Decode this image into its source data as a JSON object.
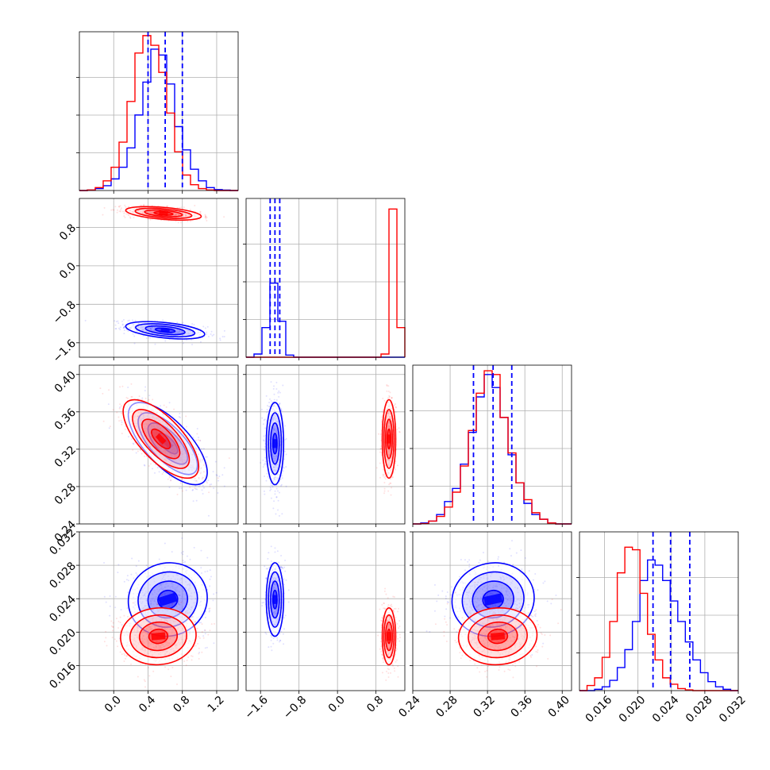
{
  "chart_data": {
    "type": "corner",
    "grid": true,
    "colors": {
      "series_a": "#0000ff",
      "series_b": "#ff0000"
    },
    "parameters": [
      {
        "range": [
          -0.4,
          1.45
        ],
        "ticks": [
          0.0,
          0.4,
          0.8,
          1.2
        ],
        "tick_labels": [
          "0.0",
          "0.4",
          "0.8",
          "1.2"
        ],
        "quantile_lines": [
          0.4,
          0.6,
          0.8
        ]
      },
      {
        "range": [
          -1.9,
          1.4
        ],
        "ticks": [
          -1.6,
          -0.8,
          0.0,
          0.8
        ],
        "tick_labels": [
          "−1.6",
          "−0.8",
          "0.0",
          "0.8"
        ],
        "quantile_lines": [
          -1.4,
          -1.3,
          -1.2
        ]
      },
      {
        "range": [
          0.24,
          0.41
        ],
        "ticks": [
          0.24,
          0.28,
          0.32,
          0.36,
          0.4
        ],
        "tick_labels": [
          "0.24",
          "0.28",
          "0.32",
          "0.36",
          "0.40"
        ],
        "quantile_lines": [
          0.305,
          0.326,
          0.346
        ]
      },
      {
        "range": [
          0.013,
          0.032
        ],
        "ticks": [
          0.016,
          0.02,
          0.024,
          0.028,
          0.032
        ],
        "tick_labels": [
          "0.016",
          "0.020",
          "0.024",
          "0.028",
          "0.032"
        ],
        "quantile_lines": [
          0.0218,
          0.0239,
          0.0262
        ]
      }
    ],
    "histograms": [
      {
        "param": 0,
        "edges_range": [
          -0.4,
          1.45
        ],
        "bins": 20,
        "series": [
          {
            "color": "#0000ff",
            "values": [
              0.0,
              0.2,
              1.0,
              2.5,
              6.0,
              12.0,
              22.0,
              39.0,
              56.0,
              73.0,
              70.0,
              55.0,
              33.0,
              21.0,
              11.0,
              5.0,
              1.5,
              0.5,
              0.2,
              0.0
            ]
          },
          {
            "color": "#ff0000",
            "values": [
              0.0,
              0.3,
              1.5,
              5.0,
              12.0,
              25.0,
              46.0,
              71.0,
              80.0,
              75.0,
              61.0,
              40.0,
              20.0,
              8.0,
              3.0,
              1.0,
              0.3,
              0.0,
              0.0,
              0.0
            ]
          }
        ],
        "ymax": 82
      },
      {
        "param": 1,
        "edges_range": [
          -1.9,
          1.4
        ],
        "bins": 20,
        "series": [
          {
            "color": "#0000ff",
            "values": [
              0.0,
              1.5,
              14.0,
              35.0,
              17.0,
              1.0,
              0.0,
              0.0,
              0.0,
              0.0,
              0.0,
              0.0,
              0.0,
              0.0,
              0.0,
              0.0,
              0.0,
              0.0,
              0.0,
              0.0
            ]
          },
          {
            "color": "#ff0000",
            "values": [
              0.0,
              0.0,
              0.0,
              0.0,
              0.0,
              0.0,
              0.0,
              0.0,
              0.0,
              0.0,
              0.0,
              0.0,
              0.0,
              0.0,
              0.0,
              0.0,
              0.0,
              1.5,
              70.0,
              14.0
            ]
          }
        ],
        "ymax": 75
      },
      {
        "param": 2,
        "edges_range": [
          0.24,
          0.41
        ],
        "bins": 20,
        "series": [
          {
            "color": "#0000ff",
            "values": [
              0.0,
              0.5,
              1.5,
              5.0,
              12.0,
              19.0,
              32.0,
              49.0,
              68.0,
              80.0,
              73.0,
              57.0,
              37.0,
              22.0,
              11.0,
              5.0,
              2.5,
              0.5,
              0.0,
              0.0
            ]
          },
          {
            "color": "#ff0000",
            "values": [
              0.0,
              0.2,
              1.5,
              4.0,
              9.0,
              17.0,
              31.0,
              50.0,
              70.0,
              82.0,
              80.0,
              57.0,
              38.0,
              22.0,
              13.0,
              6.0,
              2.5,
              0.5,
              0.0,
              0.0
            ]
          }
        ],
        "ymax": 85
      },
      {
        "param": 3,
        "edges_range": [
          0.013,
          0.032
        ],
        "bins": 21,
        "series": [
          {
            "color": "#0000ff",
            "values": [
              0.0,
              0.0,
              0.5,
              1.5,
              4.0,
              9.0,
              16.0,
              27.0,
              43.0,
              51.0,
              49.0,
              43.0,
              35.0,
              27.0,
              19.0,
              12.0,
              7.0,
              3.5,
              1.5,
              0.5,
              0.0
            ]
          },
          {
            "color": "#ff0000",
            "values": [
              0.0,
              2.0,
              5.0,
              13.0,
              27.0,
              46.0,
              56.0,
              55.0,
              38.0,
              22.0,
              12.0,
              5.0,
              2.5,
              0.8,
              0.3,
              0.0,
              0.0,
              0.0,
              0.0,
              0.0,
              0.0
            ]
          }
        ],
        "ymax": 62
      }
    ],
    "scatter_panels": [
      {
        "x_param": 0,
        "y_param": 1,
        "series": [
          {
            "color": "#0000ff",
            "mean": [
              0.6,
              -1.34
            ],
            "sd": [
              0.23,
              0.09
            ],
            "corr": -0.45
          },
          {
            "color": "#ff0000",
            "mean": [
              0.58,
              1.09
            ],
            "sd": [
              0.22,
              0.07
            ],
            "corr": -0.45
          }
        ]
      },
      {
        "x_param": 0,
        "y_param": 2,
        "series": [
          {
            "color": "#0000ff",
            "mean": [
              0.63,
              0.326
            ],
            "sd": [
              0.23,
              0.022
            ],
            "corr": -0.7
          },
          {
            "color": "#ff0000",
            "mean": [
              0.55,
              0.331
            ],
            "sd": [
              0.22,
              0.021
            ],
            "corr": -0.7
          }
        ]
      },
      {
        "x_param": 1,
        "y_param": 2,
        "series": [
          {
            "color": "#0000ff",
            "mean": [
              -1.3,
              0.326
            ],
            "sd": [
              0.09,
              0.022
            ],
            "corr": 0.0
          },
          {
            "color": "#ff0000",
            "mean": [
              1.07,
              0.331
            ],
            "sd": [
              0.07,
              0.021
            ],
            "corr": 0.0
          }
        ]
      },
      {
        "x_param": 0,
        "y_param": 3,
        "series": [
          {
            "color": "#0000ff",
            "mean": [
              0.63,
              0.0239
            ],
            "sd": [
              0.23,
              0.0022
            ],
            "corr": 0.05
          },
          {
            "color": "#ff0000",
            "mean": [
              0.52,
              0.0195
            ],
            "sd": [
              0.22,
              0.0017
            ],
            "corr": 0.05
          }
        ]
      },
      {
        "x_param": 1,
        "y_param": 3,
        "series": [
          {
            "color": "#0000ff",
            "mean": [
              -1.3,
              0.0239
            ],
            "sd": [
              0.09,
              0.0022
            ],
            "corr": 0.0
          },
          {
            "color": "#ff0000",
            "mean": [
              1.07,
              0.0195
            ],
            "sd": [
              0.07,
              0.0017
            ],
            "corr": 0.0
          }
        ]
      },
      {
        "x_param": 2,
        "y_param": 3,
        "series": [
          {
            "color": "#0000ff",
            "mean": [
              0.326,
              0.0239
            ],
            "sd": [
              0.022,
              0.0022
            ],
            "corr": 0.05
          },
          {
            "color": "#ff0000",
            "mean": [
              0.331,
              0.0195
            ],
            "sd": [
              0.021,
              0.0017
            ],
            "corr": 0.05
          }
        ]
      }
    ]
  }
}
